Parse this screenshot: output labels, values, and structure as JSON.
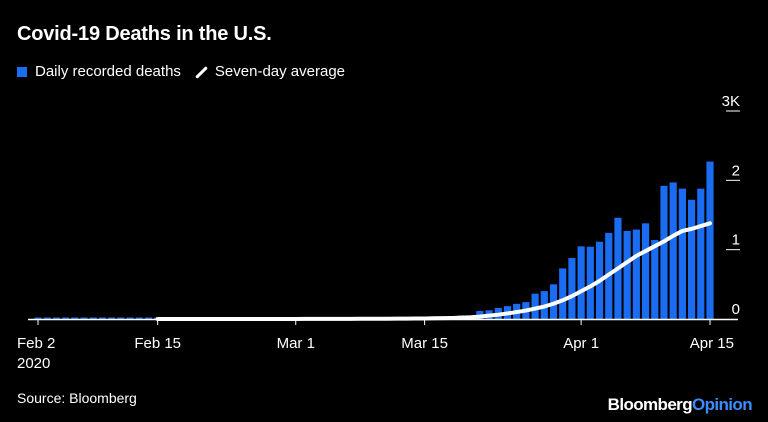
{
  "title": "Covid-19 Deaths in the U.S.",
  "legend": {
    "bars_label": "Daily recorded deaths",
    "line_label": "Seven-day average"
  },
  "source": "Source: Bloomberg",
  "brand": {
    "part1": "Bloomberg",
    "part2": "Opinion"
  },
  "colors": {
    "bar": "#1a6cf0",
    "line": "#ffffff",
    "background": "#000000",
    "axis": "#ffffff"
  },
  "chart_data": {
    "type": "bar",
    "title": "Covid-19 Deaths in the U.S.",
    "x_tick_labels": [
      "Feb 2\n2020",
      "Feb 15",
      "Mar 1",
      "Mar 15",
      "Apr 1",
      "Apr 15"
    ],
    "y_tick_labels": [
      "0",
      "1",
      "2",
      "3K"
    ],
    "ylim": [
      0,
      3000
    ],
    "y_axis_side": "right",
    "legend_position": "top-left",
    "categories": [
      "Feb 2",
      "Feb 3",
      "Feb 4",
      "Feb 5",
      "Feb 6",
      "Feb 7",
      "Feb 8",
      "Feb 9",
      "Feb 10",
      "Feb 11",
      "Feb 12",
      "Feb 13",
      "Feb 14",
      "Feb 15",
      "Feb 16",
      "Feb 17",
      "Feb 18",
      "Feb 19",
      "Feb 20",
      "Feb 21",
      "Feb 22",
      "Feb 23",
      "Feb 24",
      "Feb 25",
      "Feb 26",
      "Feb 27",
      "Feb 28",
      "Feb 29",
      "Mar 1",
      "Mar 2",
      "Mar 3",
      "Mar 4",
      "Mar 5",
      "Mar 6",
      "Mar 7",
      "Mar 8",
      "Mar 9",
      "Mar 10",
      "Mar 11",
      "Mar 12",
      "Mar 13",
      "Mar 14",
      "Mar 15",
      "Mar 16",
      "Mar 17",
      "Mar 18",
      "Mar 19",
      "Mar 20",
      "Mar 21",
      "Mar 22",
      "Mar 23",
      "Mar 24",
      "Mar 25",
      "Mar 26",
      "Mar 27",
      "Mar 28",
      "Mar 29",
      "Mar 30",
      "Mar 31",
      "Apr 1",
      "Apr 2",
      "Apr 3",
      "Apr 4",
      "Apr 5",
      "Apr 6",
      "Apr 7",
      "Apr 8",
      "Apr 9",
      "Apr 10",
      "Apr 11",
      "Apr 12",
      "Apr 13",
      "Apr 14",
      "Apr 15"
    ],
    "series": [
      {
        "name": "Daily recorded deaths",
        "type": "bar",
        "values": [
          0,
          0,
          0,
          0,
          0,
          0,
          0,
          0,
          0,
          0,
          0,
          0,
          0,
          0,
          0,
          0,
          0,
          0,
          0,
          0,
          0,
          0,
          0,
          0,
          0,
          0,
          0,
          1,
          1,
          5,
          1,
          4,
          1,
          3,
          4,
          3,
          2,
          8,
          6,
          9,
          11,
          11,
          12,
          18,
          23,
          41,
          52,
          49,
          116,
          125,
          160,
          186,
          219,
          243,
          365,
          402,
          500,
          730,
          880,
          1048,
          1042,
          1115,
          1242,
          1460,
          1270,
          1290,
          1380,
          1140,
          1920,
          1970,
          1880,
          1720,
          1880,
          2270
        ],
        "color": "#1a6cf0"
      },
      {
        "name": "Seven-day average",
        "type": "line",
        "values": [
          0,
          0,
          0,
          0,
          0,
          0,
          0,
          0,
          0,
          0,
          0,
          0,
          0,
          0,
          0,
          0,
          0,
          0,
          0,
          0,
          0,
          0,
          0,
          0,
          0,
          0,
          0,
          0,
          0,
          1,
          1,
          2,
          2,
          2,
          2,
          3,
          3,
          4,
          4,
          5,
          6,
          7,
          8,
          10,
          12,
          15,
          20,
          26,
          35,
          48,
          62,
          80,
          100,
          122,
          150,
          180,
          220,
          270,
          330,
          400,
          470,
          550,
          640,
          730,
          820,
          910,
          980,
          1050,
          1120,
          1200,
          1270,
          1300,
          1340,
          1380
        ],
        "color": "#ffffff"
      }
    ]
  }
}
